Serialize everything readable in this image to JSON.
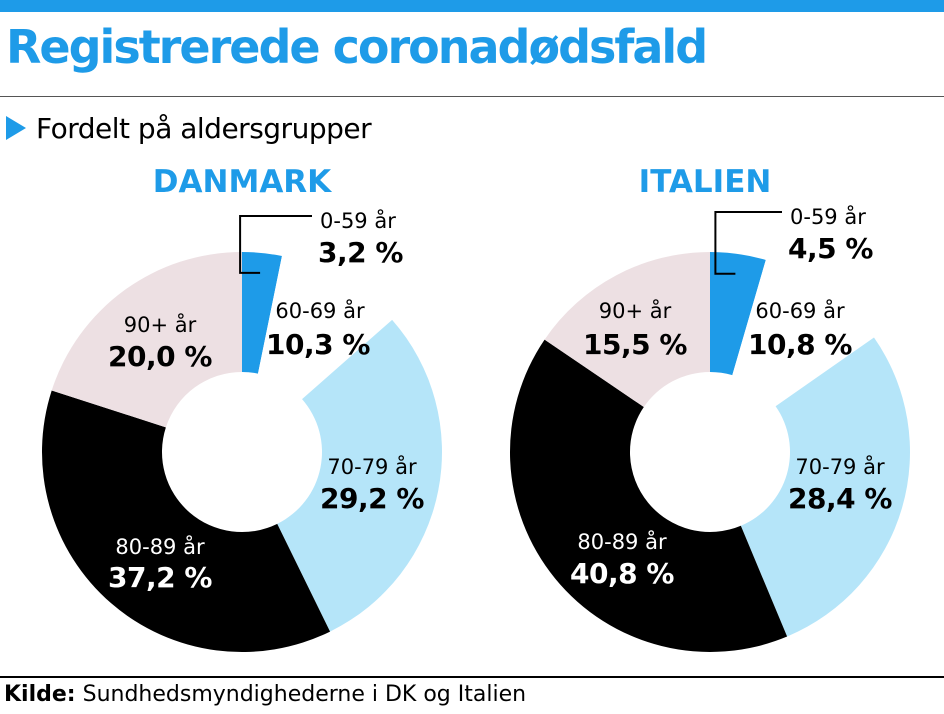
{
  "title": "Registrerede coronadødsfald",
  "subtitle": "Fordelt på aldersgrupper",
  "footer": {
    "label": "Kilde:",
    "text": " Sundhedsmyndighederne i DK og Italien"
  },
  "colors": {
    "accent": "#1e9be8",
    "slices": [
      "#1e9be8",
      "#ffffff",
      "#b5e5f9",
      "#000000",
      "#ede0e3"
    ]
  },
  "chart_data": [
    {
      "type": "pie",
      "title": "DANMARK",
      "categories": [
        "0-59 år",
        "60-69 år",
        "70-79 år",
        "80-89 år",
        "90+ år"
      ],
      "labels": [
        "3,2 %",
        "10,3 %",
        "29,2 %",
        "37,2 %",
        "20,0 %"
      ],
      "values": [
        3.2,
        10.3,
        29.2,
        37.2,
        20.0
      ]
    },
    {
      "type": "pie",
      "title": "ITALIEN",
      "categories": [
        "0-59 år",
        "60-69 år",
        "70-79 år",
        "80-89 år",
        "90+ år"
      ],
      "labels": [
        "4,5 %",
        "10,8 %",
        "28,4 %",
        "40,8 %",
        "15,5 %"
      ],
      "values": [
        4.5,
        10.8,
        28.4,
        40.8,
        15.5
      ]
    }
  ]
}
